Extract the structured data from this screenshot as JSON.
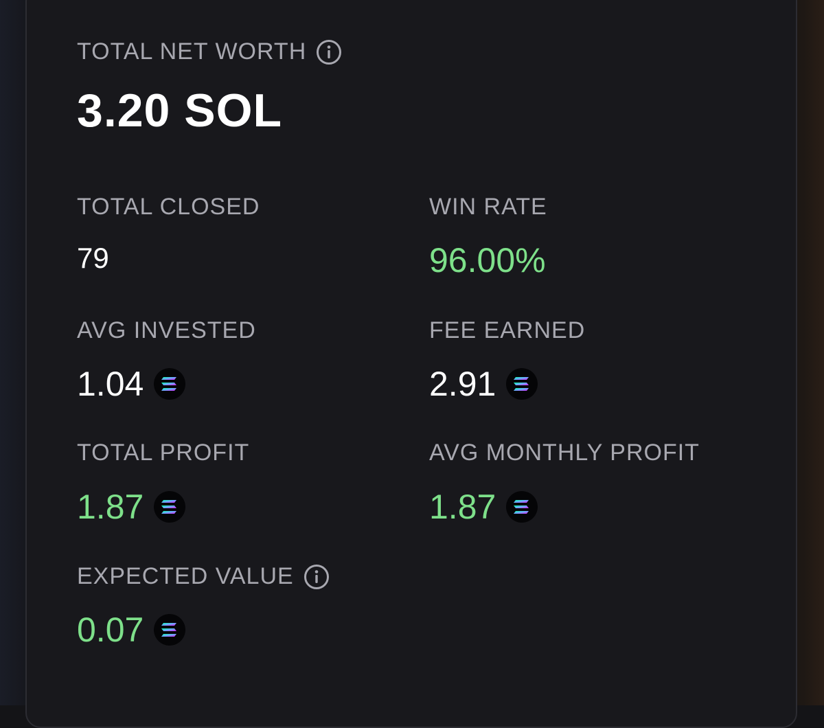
{
  "net_worth": {
    "label": "TOTAL NET WORTH",
    "value": "3.20 SOL",
    "info_icon": "info-icon"
  },
  "stats": {
    "total_closed": {
      "label": "TOTAL CLOSED",
      "value": "79"
    },
    "win_rate": {
      "label": "WIN RATE",
      "value": "96.00%"
    },
    "avg_invested": {
      "label": "AVG INVESTED",
      "value": "1.04",
      "icon": "solana-icon"
    },
    "fee_earned": {
      "label": "FEE EARNED",
      "value": "2.91",
      "icon": "solana-icon"
    },
    "total_profit": {
      "label": "TOTAL PROFIT",
      "value": "1.87",
      "icon": "solana-icon"
    },
    "avg_monthly_profit": {
      "label": "AVG MONTHLY PROFIT",
      "value": "1.87",
      "icon": "solana-icon"
    },
    "expected_value": {
      "label": "EXPECTED VALUE",
      "value": "0.07",
      "icon": "solana-icon",
      "info_icon": "info-icon"
    }
  },
  "colors": {
    "background": "#141417",
    "card": "#18181c",
    "label": "#a8a8b0",
    "value": "#ffffff",
    "positive": "#7ee08a"
  }
}
